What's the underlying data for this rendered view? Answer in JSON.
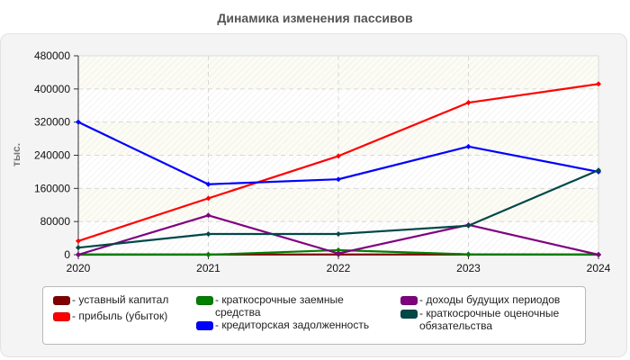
{
  "title": "Динамика изменения пассивов",
  "chart_data": {
    "type": "line",
    "title": "Динамика изменения пассивов",
    "xlabel": "",
    "ylabel": "тыс.",
    "x": [
      "2020",
      "2021",
      "2022",
      "2023",
      "2024"
    ],
    "ylim": [
      0,
      480000
    ],
    "yticks": [
      0,
      80000,
      160000,
      240000,
      320000,
      400000,
      480000
    ],
    "ytick_labels": [
      "0",
      "80000",
      "160000",
      "240000",
      "320000",
      "400000",
      "480000"
    ],
    "grid": true,
    "legend_position": "bottom",
    "series": [
      {
        "name": "уставный капитал",
        "color": "#800000",
        "values": [
          500,
          500,
          500,
          500,
          500
        ]
      },
      {
        "name": "прибыль (убыток)",
        "color": "#ff0000",
        "values": [
          33000,
          136000,
          238000,
          367000,
          412000
        ]
      },
      {
        "name": "краткосрочные заемные средства",
        "color": "#008000",
        "values": [
          0,
          0,
          11000,
          1000,
          0
        ]
      },
      {
        "name": "кредиторская задолженность",
        "color": "#0000ff",
        "values": [
          320000,
          170000,
          182000,
          261000,
          200000
        ]
      },
      {
        "name": "доходы будущих периодов",
        "color": "#800080",
        "values": [
          0,
          95000,
          3000,
          72000,
          0
        ]
      },
      {
        "name": "краткосрочные оценочные обязательства",
        "color": "#004848",
        "values": [
          17000,
          50000,
          50000,
          70000,
          204000
        ]
      }
    ]
  },
  "legend": {
    "items": [
      {
        "label": "- уставный капитал",
        "color": "#800000"
      },
      {
        "label": "- прибыль (убыток)",
        "color": "#ff0000"
      },
      {
        "label": "- краткосрочные заемные\nсредства",
        "color": "#008000"
      },
      {
        "label": "- кредиторская задолженность",
        "color": "#0000ff"
      },
      {
        "label": "- доходы будущих периодов",
        "color": "#800080"
      },
      {
        "label": "- краткосрочные оценочные\nобязательства",
        "color": "#004848"
      }
    ]
  }
}
